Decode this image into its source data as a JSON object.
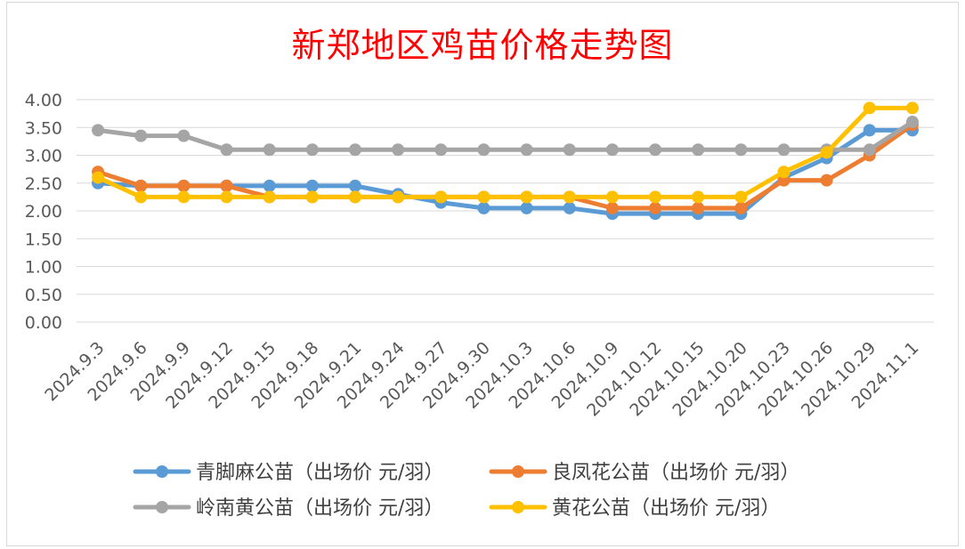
{
  "chart_data": {
    "type": "line",
    "title": "新郑地区鸡苗价格走势图",
    "categories": [
      "2024.9.3",
      "2024.9.6",
      "2024.9.9",
      "2024.9.12",
      "2024.9.15",
      "2024.9.18",
      "2024.9.21",
      "2024.9.24",
      "2024.9.27",
      "2024.9.30",
      "2024.10.3",
      "2024.10.6",
      "2024.10.9",
      "2024.10.12",
      "2024.10.15",
      "2024.10.20",
      "2024.10.23",
      "2024.10.26",
      "2024.10.29",
      "2024.11.1"
    ],
    "ylim": [
      0,
      4
    ],
    "yticks": [
      "0.00",
      "0.50",
      "1.00",
      "1.50",
      "2.00",
      "2.50",
      "3.00",
      "3.50",
      "4.00"
    ],
    "grid": true,
    "legend_position": "bottom",
    "series": [
      {
        "name": "青脚麻公苗（出场价 元/羽）",
        "color": "#5b9bd5",
        "values": [
          2.5,
          2.45,
          2.45,
          2.45,
          2.45,
          2.45,
          2.45,
          2.3,
          2.15,
          2.05,
          2.05,
          2.05,
          1.95,
          1.95,
          1.95,
          1.95,
          2.6,
          2.95,
          3.45,
          3.45
        ]
      },
      {
        "name": "良凤花公苗（出场价 元/羽）",
        "color": "#ed7d31",
        "values": [
          2.7,
          2.45,
          2.45,
          2.45,
          2.25,
          2.25,
          2.25,
          2.25,
          2.25,
          2.25,
          2.25,
          2.25,
          2.05,
          2.05,
          2.05,
          2.05,
          2.55,
          2.55,
          3.0,
          3.55
        ]
      },
      {
        "name": "岭南黄公苗（出场价 元/羽）",
        "color": "#a5a5a5",
        "values": [
          3.45,
          3.35,
          3.35,
          3.1,
          3.1,
          3.1,
          3.1,
          3.1,
          3.1,
          3.1,
          3.1,
          3.1,
          3.1,
          3.1,
          3.1,
          3.1,
          3.1,
          3.1,
          3.1,
          3.6
        ]
      },
      {
        "name": "黄花公苗（出场价 元/羽）",
        "color": "#ffc000",
        "values": [
          2.6,
          2.25,
          2.25,
          2.25,
          2.25,
          2.25,
          2.25,
          2.25,
          2.25,
          2.25,
          2.25,
          2.25,
          2.25,
          2.25,
          2.25,
          2.25,
          2.7,
          3.05,
          3.85,
          3.85
        ]
      }
    ]
  }
}
